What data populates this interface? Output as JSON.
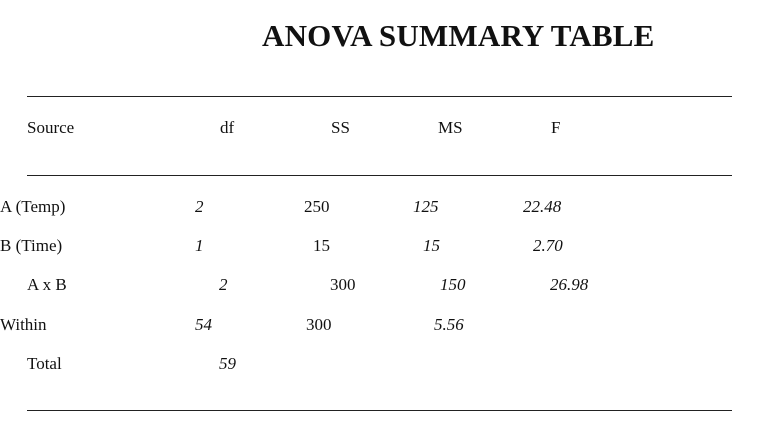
{
  "title": "ANOVA SUMMARY TABLE",
  "headers": {
    "source": "Source",
    "df": "df",
    "ss": "SS",
    "ms": "MS",
    "f": "F"
  },
  "rows": [
    {
      "source": "A (Temp)",
      "df": "2",
      "ss": "250",
      "ms": "125",
      "f": "22.48"
    },
    {
      "source": "B (Time)",
      "df": "1",
      "ss": "15",
      "ms": "15",
      "f": "2.70"
    },
    {
      "source": "A x B",
      "df": "2",
      "ss": "300",
      "ms": "150",
      "f": "26.98"
    },
    {
      "source": "Within",
      "df": "54",
      "ss": "300",
      "ms": "5.56",
      "f": ""
    },
    {
      "source": "Total",
      "df": "59",
      "ss": "",
      "ms": "",
      "f": ""
    }
  ]
}
